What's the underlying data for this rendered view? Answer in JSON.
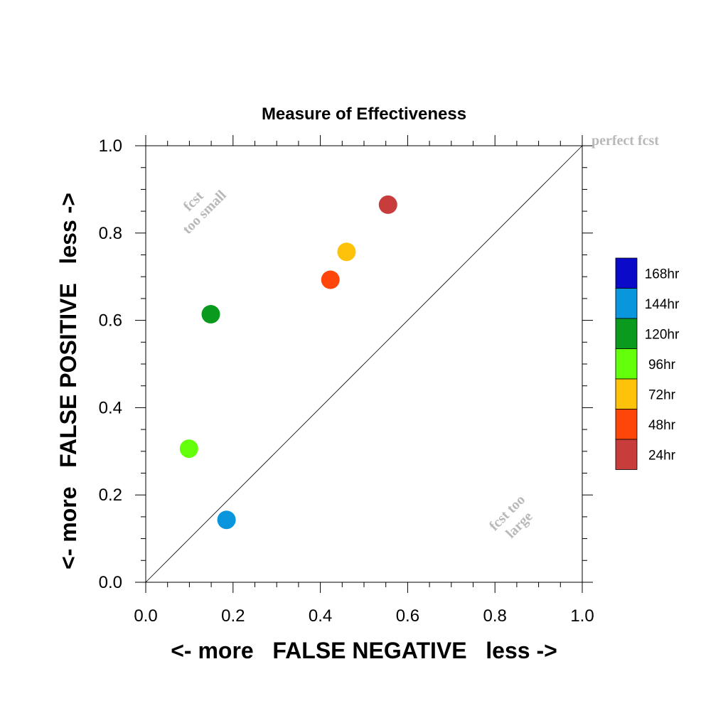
{
  "chart_data": {
    "type": "scatter",
    "title": "Measure of Effectiveness",
    "xlabel": "<- more   FALSE NEGATIVE   less ->",
    "ylabel": "<- more   FALSE POSITIVE   less ->",
    "xlim": [
      0.0,
      1.0
    ],
    "ylim": [
      0.0,
      1.0
    ],
    "x_ticks": [
      "0.0",
      "0.2",
      "0.4",
      "0.6",
      "0.8",
      "1.0"
    ],
    "y_ticks": [
      "0.0",
      "0.2",
      "0.4",
      "0.6",
      "0.8",
      "1.0"
    ],
    "grid": false,
    "legend_position": "right",
    "reference_line": {
      "from": [
        0.0,
        0.0
      ],
      "to": [
        1.0,
        1.0
      ]
    },
    "annotations": {
      "perfect": "perfect fcst",
      "too_small_line1": "fcst",
      "too_small_line2": "too small",
      "too_large_line1": "fcst too",
      "too_large_line2": "large"
    },
    "legend": [
      {
        "label": "168hr",
        "color": "#0a0ac8"
      },
      {
        "label": "144hr",
        "color": "#0a96dc"
      },
      {
        "label": "120hr",
        "color": "#0a9a1e"
      },
      {
        "label": "96hr",
        "color": "#64ff0a"
      },
      {
        "label": "72hr",
        "color": "#ffc20a"
      },
      {
        "label": "48hr",
        "color": "#ff460a"
      },
      {
        "label": "24hr",
        "color": "#c83c3c"
      }
    ],
    "points": [
      {
        "lead": "24hr",
        "x": 0.555,
        "y": 0.865,
        "color": "#c83c3c"
      },
      {
        "lead": "72hr",
        "x": 0.46,
        "y": 0.757,
        "color": "#ffc20a"
      },
      {
        "lead": "48hr",
        "x": 0.423,
        "y": 0.693,
        "color": "#ff460a"
      },
      {
        "lead": "120hr",
        "x": 0.149,
        "y": 0.614,
        "color": "#0a9a1e"
      },
      {
        "lead": "96hr",
        "x": 0.099,
        "y": 0.306,
        "color": "#64ff0a"
      },
      {
        "lead": "144hr",
        "x": 0.185,
        "y": 0.143,
        "color": "#0a96dc"
      }
    ]
  }
}
